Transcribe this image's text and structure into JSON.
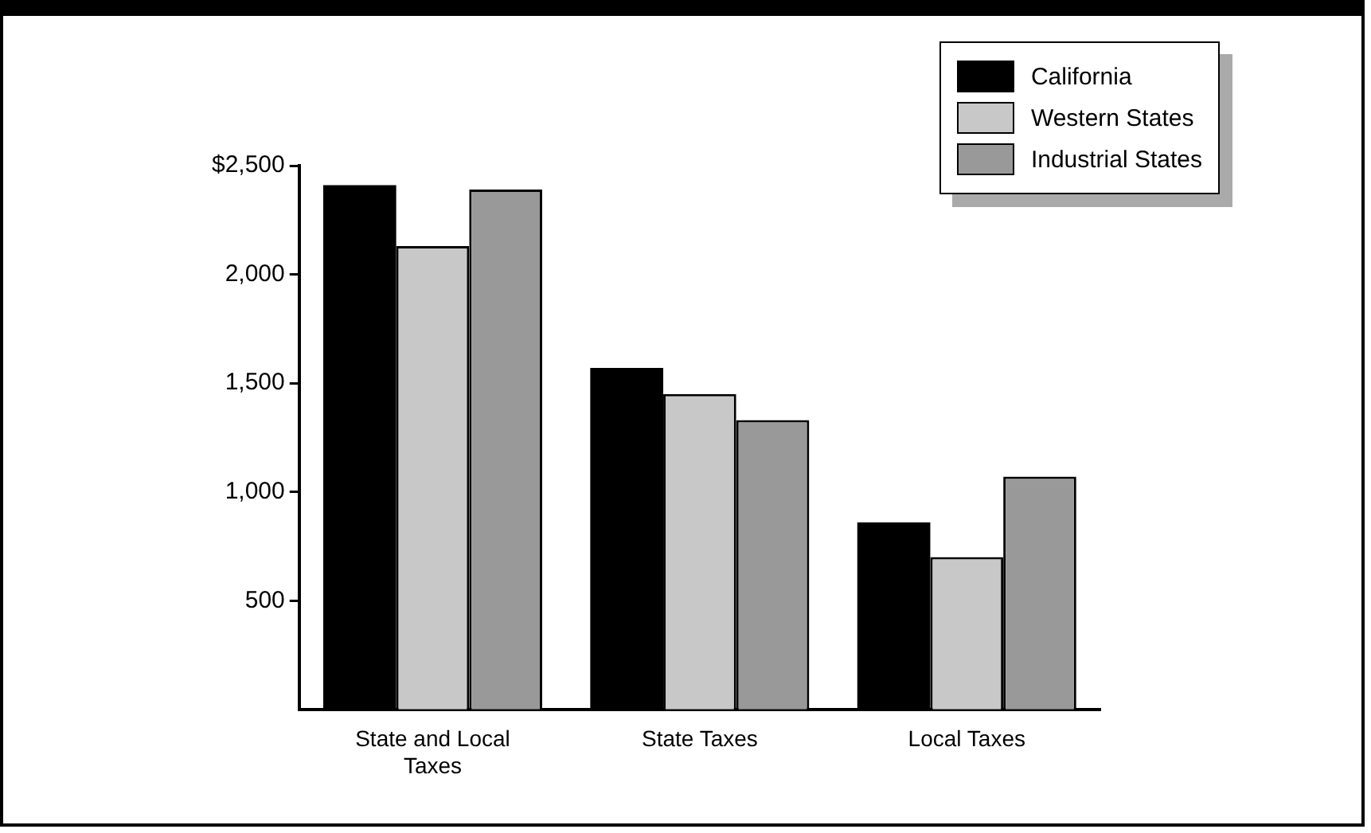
{
  "chart_data": {
    "type": "bar",
    "categories": [
      "State and Local Taxes",
      "State Taxes",
      "Local Taxes"
    ],
    "series": [
      {
        "name": "California",
        "color": "#000000",
        "values": [
          2410,
          1570,
          860
        ]
      },
      {
        "name": "Western States",
        "color": "#c8c8c8",
        "values": [
          2130,
          1450,
          700
        ]
      },
      {
        "name": "Industrial States",
        "color": "#999999",
        "values": [
          2390,
          1330,
          1070
        ]
      }
    ],
    "ylim": [
      0,
      2500
    ],
    "yticks": [
      {
        "value": 500,
        "label": "500"
      },
      {
        "value": 1000,
        "label": "1,000"
      },
      {
        "value": 1500,
        "label": "1,500"
      },
      {
        "value": 2000,
        "label": "2,000"
      },
      {
        "value": 2500,
        "label": "$2,500"
      }
    ],
    "legend": "top right"
  }
}
